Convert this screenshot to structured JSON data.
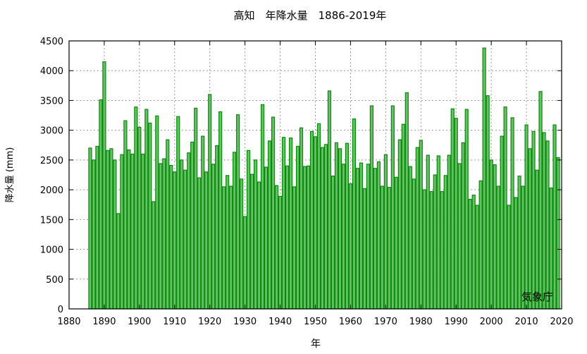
{
  "chart_data": {
    "type": "bar",
    "title": "高知　年降水量　1886-2019年",
    "xlabel": "年",
    "ylabel": "降水量 (mm)",
    "annotation": "気象庁",
    "xlim": [
      1880,
      2020
    ],
    "ylim": [
      0,
      4500
    ],
    "grid": true,
    "xticks": [
      1880,
      1890,
      1900,
      1910,
      1920,
      1930,
      1940,
      1950,
      1960,
      1970,
      1980,
      1990,
      2000,
      2010,
      2020
    ],
    "yticks": [
      0,
      500,
      1000,
      1500,
      2000,
      2500,
      3000,
      3500,
      4000,
      4500
    ],
    "bar_color": "#66c266",
    "edge_color": "#0a8a0a",
    "start_year": 1886,
    "values": [
      2700,
      2500,
      2730,
      3510,
      4150,
      2660,
      2690,
      2500,
      1600,
      2590,
      3160,
      2670,
      2600,
      3390,
      3050,
      2600,
      3350,
      3120,
      1800,
      3240,
      2440,
      2520,
      2840,
      2410,
      2300,
      3230,
      2500,
      2330,
      2620,
      2800,
      3370,
      2200,
      2900,
      2300,
      3600,
      2430,
      2740,
      3310,
      2050,
      2240,
      2060,
      2630,
      3260,
      2180,
      1550,
      2660,
      2260,
      2500,
      2130,
      3430,
      2380,
      2820,
      3220,
      2070,
      1890,
      2880,
      2400,
      2870,
      2050,
      2730,
      3040,
      2390,
      2400,
      2980,
      2890,
      3110,
      2710,
      2760,
      3660,
      2230,
      2790,
      2690,
      2430,
      2780,
      2100,
      3190,
      2360,
      2450,
      2020,
      2430,
      3410,
      2360,
      2470,
      2060,
      2590,
      2040,
      3410,
      2210,
      2840,
      3100,
      3630,
      2390,
      2180,
      2710,
      2830,
      2000,
      2580,
      1970,
      2250,
      2570,
      1970,
      2240,
      2580,
      3360,
      3200,
      2440,
      2790,
      3350,
      1840,
      1910,
      1740,
      2150,
      4380,
      3580,
      2500,
      2420,
      2060,
      2900,
      3390,
      1740,
      3210,
      1870,
      2230,
      2060,
      3090,
      2690,
      2980,
      2330,
      3650,
      2960,
      2820,
      2030,
      3090,
      2540
    ]
  }
}
